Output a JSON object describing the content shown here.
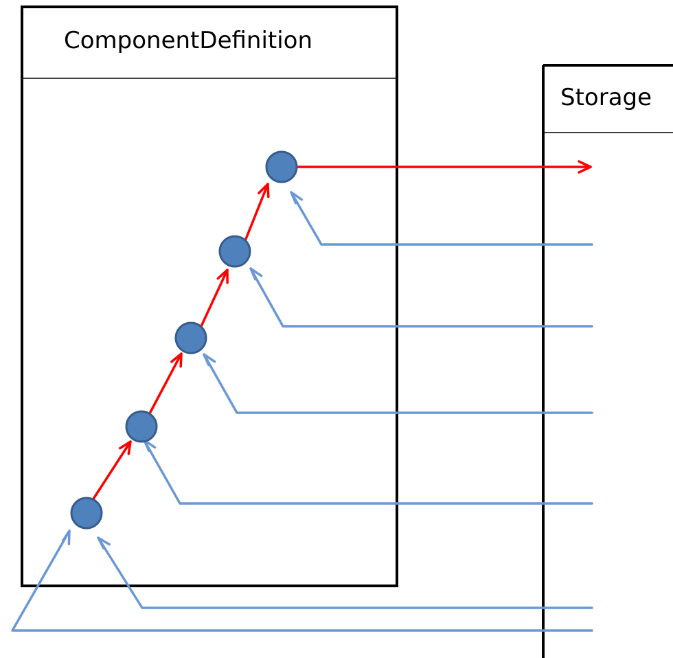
{
  "component_box": {
    "title": "ComponentDefinition"
  },
  "storage_box": {
    "title": "Storage"
  },
  "colors": {
    "red_arrow": "#ff0000",
    "blue_arrow": "#6a98d6",
    "node_fill": "#4f81bd",
    "node_stroke": "#385d8a",
    "border": "#000000"
  },
  "icons": {
    "node": "circle-node",
    "arrowhead": "chevron-arrow"
  }
}
